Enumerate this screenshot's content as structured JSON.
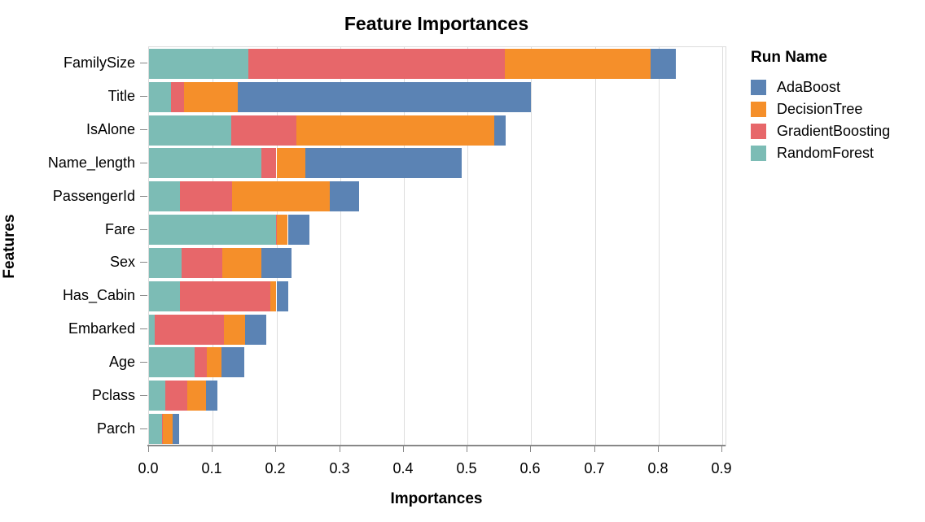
{
  "chart_data": {
    "type": "bar",
    "orientation": "horizontal",
    "stacked": true,
    "title": "Feature Importances",
    "xlabel": "Importances",
    "ylabel": "Features",
    "legend_title": "Run Name",
    "legend_position": "right",
    "grid": true,
    "xlim": [
      0,
      0.905
    ],
    "x_ticks": [
      0.0,
      0.1,
      0.2,
      0.3,
      0.4,
      0.5,
      0.6,
      0.7,
      0.8,
      0.9
    ],
    "x_tick_labels": [
      "0.0",
      "0.1",
      "0.2",
      "0.3",
      "0.4",
      "0.5",
      "0.6",
      "0.7",
      "0.8",
      "0.9"
    ],
    "categories": [
      "FamilySize",
      "Title",
      "IsAlone",
      "Name_length",
      "PassengerId",
      "Fare",
      "Sex",
      "Has_Cabin",
      "Embarked",
      "Age",
      "Pclass",
      "Parch"
    ],
    "series": [
      {
        "name": "RandomForest",
        "color": "#7cbcb5",
        "values": [
          0.156,
          0.035,
          0.129,
          0.176,
          0.049,
          0.199,
          0.051,
          0.048,
          0.009,
          0.071,
          0.026,
          0.02
        ]
      },
      {
        "name": "GradientBoosting",
        "color": "#e7676a",
        "values": [
          0.402,
          0.02,
          0.102,
          0.024,
          0.081,
          0.002,
          0.064,
          0.142,
          0.109,
          0.02,
          0.034,
          0.002
        ]
      },
      {
        "name": "DecisionTree",
        "color": "#f58f2a",
        "values": [
          0.229,
          0.084,
          0.311,
          0.045,
          0.154,
          0.017,
          0.061,
          0.01,
          0.033,
          0.023,
          0.03,
          0.015
        ]
      },
      {
        "name": "AdaBoost",
        "color": "#5b83b4",
        "values": [
          0.04,
          0.46,
          0.018,
          0.246,
          0.046,
          0.034,
          0.048,
          0.019,
          0.033,
          0.035,
          0.017,
          0.01
        ]
      }
    ],
    "legend_order": [
      "AdaBoost",
      "DecisionTree",
      "GradientBoosting",
      "RandomForest"
    ],
    "colors": {
      "AdaBoost": "#5b83b4",
      "DecisionTree": "#f58f2a",
      "GradientBoosting": "#e7676a",
      "RandomForest": "#7cbcb5",
      "gridline": "#dddddd",
      "axis": "#888888"
    }
  }
}
